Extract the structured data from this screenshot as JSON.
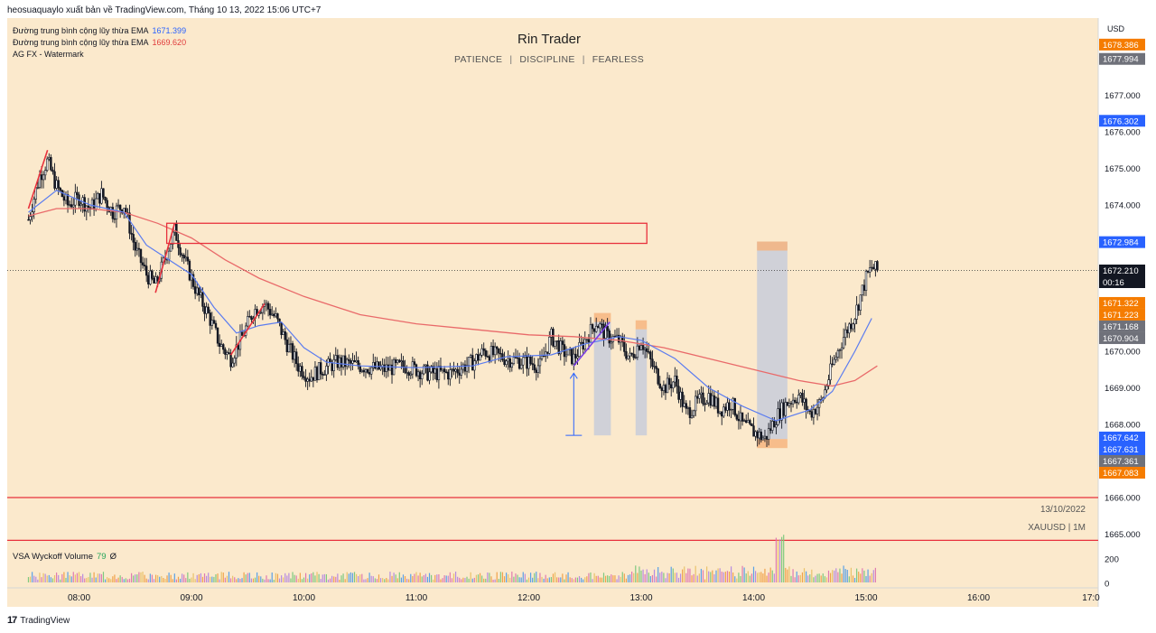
{
  "header": {
    "published": "heosuaquaylo xuất bản về TradingView.com, Tháng 10 13, 2022 15:06 UTC+7"
  },
  "legend": {
    "ema1_label": "Đường trung bình cộng lũy thừa EMA",
    "ema1_value": "1671.399",
    "ema2_label": "Đường trung bình cộng lũy thừa EMA",
    "ema2_value": "1669.620",
    "watermark_label": "AG FX - Watermark"
  },
  "watermark": {
    "title": "Rin Trader",
    "words": [
      "PATIENCE",
      "DISCIPLINE",
      "FEARLESS"
    ],
    "separator": "|",
    "date": "13/10/2022",
    "symbol": "XAUUSD | 1M"
  },
  "volume_legend": {
    "label": "VSA Wyckoff Volume",
    "value": "79",
    "extra": "Ø"
  },
  "footer": {
    "brand": "TradingView",
    "logo": "17"
  },
  "colors": {
    "bg": "#fbe9cc",
    "up": "#131722",
    "down": "#131722",
    "ema_fast": "#5b7cf0",
    "ema_slow": "#e96a6a",
    "box_red": "#e8313c",
    "shade": "#c8ccd9",
    "orange": "#f6b27a",
    "blue_tag": "#2962ff",
    "orange_tag": "#f57c00",
    "gray_tag": "#6f717a",
    "black_tag": "#131722"
  },
  "chart_data": {
    "type": "candlestick",
    "symbol": "XAUUSD",
    "timeframe": "1M",
    "currency": "USD",
    "x_ticks": [
      "08:00",
      "09:00",
      "10:00",
      "11:00",
      "12:00",
      "13:00",
      "14:00",
      "15:00",
      "16:00",
      "17:0"
    ],
    "y_ticks": [
      "1665.000",
      "1666.000",
      "1667.000",
      "1668.000",
      "1669.000",
      "1670.000",
      "1671.000",
      "1672.000",
      "1673.000",
      "1674.000",
      "1675.000",
      "1676.000",
      "1677.000"
    ],
    "ylim": [
      1664.6,
      1679.1
    ],
    "price_labels": [
      {
        "text": "1678.386",
        "value": 1678.386,
        "color": "orange"
      },
      {
        "text": "1677.994",
        "value": 1677.994,
        "color": "gray"
      },
      {
        "text": "1676.302",
        "value": 1676.302,
        "color": "blue"
      },
      {
        "text": "1672.984",
        "value": 1672.984,
        "color": "blue"
      },
      {
        "text": "1672.210",
        "value": 1672.21,
        "color": "black",
        "sub": "00:16"
      },
      {
        "text": "1671.322",
        "value": 1671.322,
        "color": "orange"
      },
      {
        "text": "1671.223",
        "value": 1671.223,
        "color": "orange"
      },
      {
        "text": "1671.168",
        "value": 1671.168,
        "color": "gray"
      },
      {
        "text": "1670.904",
        "value": 1670.904,
        "color": "gray"
      },
      {
        "text": "1667.642",
        "value": 1667.642,
        "color": "blue"
      },
      {
        "text": "1667.631",
        "value": 1667.631,
        "color": "blue"
      },
      {
        "text": "1667.361",
        "value": 1667.361,
        "color": "gray"
      },
      {
        "text": "1667.083",
        "value": 1667.083,
        "color": "orange"
      }
    ],
    "volume_ticks": [
      "200",
      "0"
    ],
    "close_path": [
      [
        7.55,
        1673.6
      ],
      [
        7.65,
        1674.8
      ],
      [
        7.72,
        1675.2
      ],
      [
        7.8,
        1674.5
      ],
      [
        7.9,
        1674.0
      ],
      [
        8.0,
        1674.2
      ],
      [
        8.1,
        1673.9
      ],
      [
        8.2,
        1674.3
      ],
      [
        8.3,
        1673.8
      ],
      [
        8.4,
        1674.0
      ],
      [
        8.5,
        1672.8
      ],
      [
        8.6,
        1672.1
      ],
      [
        8.68,
        1671.8
      ],
      [
        8.75,
        1672.4
      ],
      [
        8.85,
        1673.3
      ],
      [
        8.95,
        1672.4
      ],
      [
        9.05,
        1671.6
      ],
      [
        9.15,
        1671.0
      ],
      [
        9.25,
        1670.2
      ],
      [
        9.35,
        1669.8
      ],
      [
        9.45,
        1670.4
      ],
      [
        9.55,
        1671.1
      ],
      [
        9.65,
        1671.3
      ],
      [
        9.75,
        1670.9
      ],
      [
        9.85,
        1670.2
      ],
      [
        9.95,
        1669.6
      ],
      [
        10.05,
        1669.3
      ],
      [
        10.15,
        1669.5
      ],
      [
        10.3,
        1669.7
      ],
      [
        10.5,
        1669.6
      ],
      [
        10.7,
        1669.5
      ],
      [
        10.9,
        1669.6
      ],
      [
        11.1,
        1669.4
      ],
      [
        11.3,
        1669.4
      ],
      [
        11.5,
        1669.7
      ],
      [
        11.6,
        1670.0
      ],
      [
        11.7,
        1669.9
      ],
      [
        11.8,
        1669.8
      ],
      [
        12.0,
        1669.7
      ],
      [
        12.1,
        1669.6
      ],
      [
        12.2,
        1670.4
      ],
      [
        12.3,
        1670.0
      ],
      [
        12.4,
        1669.8
      ],
      [
        12.5,
        1670.3
      ],
      [
        12.6,
        1670.8
      ],
      [
        12.7,
        1670.4
      ],
      [
        12.8,
        1670.3
      ],
      [
        12.9,
        1669.8
      ],
      [
        13.0,
        1670.3
      ],
      [
        13.1,
        1669.6
      ],
      [
        13.2,
        1669.0
      ],
      [
        13.3,
        1669.2
      ],
      [
        13.4,
        1668.3
      ],
      [
        13.5,
        1668.6
      ],
      [
        13.6,
        1668.8
      ],
      [
        13.7,
        1668.4
      ],
      [
        13.8,
        1668.6
      ],
      [
        13.9,
        1668.0
      ],
      [
        14.0,
        1667.8
      ],
      [
        14.1,
        1667.6
      ],
      [
        14.2,
        1668.2
      ],
      [
        14.3,
        1668.6
      ],
      [
        14.4,
        1668.8
      ],
      [
        14.5,
        1668.3
      ],
      [
        14.6,
        1668.6
      ],
      [
        14.7,
        1669.6
      ],
      [
        14.8,
        1670.4
      ],
      [
        14.9,
        1671.0
      ],
      [
        15.0,
        1672.0
      ],
      [
        15.05,
        1672.3
      ],
      [
        15.1,
        1672.2
      ]
    ],
    "ema_fast": [
      [
        7.55,
        1673.8
      ],
      [
        7.8,
        1674.4
      ],
      [
        8.1,
        1674.0
      ],
      [
        8.4,
        1673.8
      ],
      [
        8.6,
        1672.9
      ],
      [
        8.8,
        1672.5
      ],
      [
        9.0,
        1672.1
      ],
      [
        9.2,
        1671.2
      ],
      [
        9.4,
        1670.5
      ],
      [
        9.6,
        1670.7
      ],
      [
        9.8,
        1670.8
      ],
      [
        10.0,
        1670.1
      ],
      [
        10.2,
        1669.7
      ],
      [
        10.5,
        1669.6
      ],
      [
        11.0,
        1669.55
      ],
      [
        11.5,
        1669.6
      ],
      [
        11.8,
        1669.85
      ],
      [
        12.2,
        1669.9
      ],
      [
        12.5,
        1670.2
      ],
      [
        12.8,
        1670.4
      ],
      [
        13.0,
        1670.3
      ],
      [
        13.3,
        1669.8
      ],
      [
        13.6,
        1669.0
      ],
      [
        13.9,
        1668.5
      ],
      [
        14.2,
        1668.1
      ],
      [
        14.5,
        1668.4
      ],
      [
        14.7,
        1668.9
      ],
      [
        14.9,
        1670.0
      ],
      [
        15.05,
        1670.9
      ]
    ],
    "ema_slow": [
      [
        7.55,
        1673.7
      ],
      [
        7.8,
        1673.9
      ],
      [
        8.1,
        1673.9
      ],
      [
        8.4,
        1673.8
      ],
      [
        8.7,
        1673.5
      ],
      [
        9.0,
        1673.1
      ],
      [
        9.3,
        1672.5
      ],
      [
        9.6,
        1672.0
      ],
      [
        10.0,
        1671.5
      ],
      [
        10.5,
        1671.0
      ],
      [
        11.0,
        1670.75
      ],
      [
        11.5,
        1670.6
      ],
      [
        12.0,
        1670.45
      ],
      [
        12.4,
        1670.4
      ],
      [
        12.8,
        1670.3
      ],
      [
        13.2,
        1670.1
      ],
      [
        13.6,
        1669.8
      ],
      [
        14.0,
        1669.5
      ],
      [
        14.4,
        1669.2
      ],
      [
        14.7,
        1669.05
      ],
      [
        14.9,
        1669.2
      ],
      [
        15.1,
        1669.6
      ]
    ],
    "zone_box": {
      "x1": 8.78,
      "x2": 13.05,
      "y_low": 1672.95,
      "y_high": 1673.5
    },
    "horizontal_lines": [
      1666.0,
      1664.83
    ],
    "current_price_line": 1672.21,
    "shaded_columns": [
      {
        "x1": 14.03,
        "x2": 14.3,
        "y_low": 1667.6,
        "y_high": 1673.0
      },
      {
        "x1": 12.58,
        "x2": 12.73,
        "y_low": 1667.7,
        "y_high": 1670.8
      },
      {
        "x1": 12.95,
        "x2": 13.05,
        "y_low": 1667.7,
        "y_high": 1670.6
      }
    ],
    "measure_arrow": {
      "x": 12.4,
      "y_low": 1667.7,
      "y_high": 1669.4
    }
  }
}
